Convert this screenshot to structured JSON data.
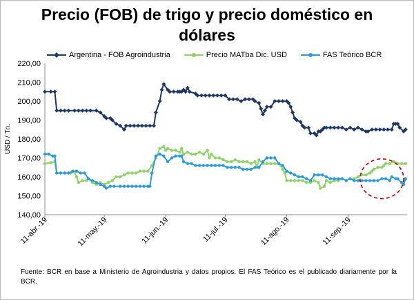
{
  "chart_data": {
    "type": "line",
    "title": "Precio (FOB) de trigo y precio doméstico en dólares",
    "xlabel": "",
    "ylabel": "USD / Tn.",
    "ylim": [
      140,
      220
    ],
    "yticks": [
      "140,00",
      "150,00",
      "160,00",
      "170,00",
      "180,00",
      "190,00",
      "200,00",
      "210,00",
      "220,00"
    ],
    "x_ticks": [
      "11-abr.-19",
      "11-may.-19",
      "11-jun.-19",
      "11-jul.-19",
      "11-ago.-19",
      "11-sep.-19"
    ],
    "x_tick_days": [
      0,
      30,
      61,
      91,
      122,
      153
    ],
    "xlim_days": [
      0,
      181
    ],
    "grid": false,
    "legend_position": "top",
    "series": [
      {
        "name": "Argentina - FOB Agroindustria",
        "color": "#1f3864",
        "marker": "diamond",
        "points": [
          [
            0,
            205
          ],
          [
            3,
            205
          ],
          [
            5,
            205
          ],
          [
            6,
            195
          ],
          [
            8,
            195
          ],
          [
            10,
            195
          ],
          [
            12,
            195
          ],
          [
            15,
            195
          ],
          [
            17,
            195
          ],
          [
            19,
            195
          ],
          [
            21,
            195
          ],
          [
            23,
            195
          ],
          [
            26,
            195
          ],
          [
            28,
            194
          ],
          [
            30,
            192
          ],
          [
            31,
            191
          ],
          [
            33,
            191
          ],
          [
            34,
            190
          ],
          [
            36,
            188
          ],
          [
            38,
            187
          ],
          [
            40,
            185
          ],
          [
            41,
            187
          ],
          [
            43,
            187
          ],
          [
            45,
            187
          ],
          [
            47,
            187
          ],
          [
            49,
            187
          ],
          [
            51,
            187
          ],
          [
            53,
            187
          ],
          [
            55,
            187
          ],
          [
            56,
            194
          ],
          [
            58,
            200
          ],
          [
            59,
            206
          ],
          [
            60,
            209
          ],
          [
            62,
            206
          ],
          [
            63,
            205
          ],
          [
            65,
            205
          ],
          [
            67,
            205
          ],
          [
            68,
            205
          ],
          [
            69,
            205
          ],
          [
            70,
            206
          ],
          [
            71,
            205
          ],
          [
            72,
            207
          ],
          [
            73,
            205
          ],
          [
            76,
            204
          ],
          [
            77,
            203
          ],
          [
            79,
            203
          ],
          [
            81,
            203
          ],
          [
            83,
            203
          ],
          [
            85,
            203
          ],
          [
            87,
            203
          ],
          [
            89,
            203
          ],
          [
            91,
            203
          ],
          [
            93,
            201
          ],
          [
            95,
            201
          ],
          [
            97,
            201
          ],
          [
            99,
            200
          ],
          [
            101,
            201
          ],
          [
            103,
            201
          ],
          [
            105,
            201
          ],
          [
            106,
            200
          ],
          [
            108,
            199
          ],
          [
            109,
            196
          ],
          [
            110,
            193
          ],
          [
            111,
            195
          ],
          [
            112,
            197
          ],
          [
            114,
            197
          ],
          [
            116,
            200
          ],
          [
            118,
            200
          ],
          [
            120,
            200
          ],
          [
            122,
            200
          ],
          [
            123,
            199
          ],
          [
            124,
            197
          ],
          [
            125,
            194
          ],
          [
            126,
            191
          ],
          [
            127,
            190
          ],
          [
            129,
            189
          ],
          [
            130,
            187
          ],
          [
            131,
            186
          ],
          [
            133,
            186
          ],
          [
            134,
            183
          ],
          [
            136,
            183
          ],
          [
            137,
            182
          ],
          [
            138,
            184
          ],
          [
            139,
            184
          ],
          [
            140,
            185
          ],
          [
            141,
            186
          ],
          [
            142,
            186
          ],
          [
            144,
            186
          ],
          [
            146,
            186
          ],
          [
            148,
            186
          ],
          [
            150,
            186
          ],
          [
            152,
            185
          ],
          [
            154,
            186
          ],
          [
            156,
            185
          ],
          [
            158,
            186
          ],
          [
            160,
            185
          ],
          [
            162,
            184
          ],
          [
            163,
            184
          ],
          [
            165,
            185
          ],
          [
            167,
            185
          ],
          [
            169,
            185
          ],
          [
            171,
            185
          ],
          [
            173,
            185
          ],
          [
            175,
            185
          ],
          [
            176,
            188
          ],
          [
            177,
            188
          ],
          [
            178,
            188
          ],
          [
            179,
            186
          ],
          [
            181,
            184
          ],
          [
            182,
            185
          ]
        ]
      },
      {
        "name": "Precio MATba Dic. USD",
        "color": "#8fd16a",
        "marker": "circle",
        "points": [
          [
            0,
            167
          ],
          [
            3,
            167.5
          ],
          [
            5,
            168
          ],
          [
            6,
            162
          ],
          [
            10,
            162
          ],
          [
            13,
            162
          ],
          [
            15,
            162.5
          ],
          [
            16,
            160
          ],
          [
            17,
            157
          ],
          [
            19,
            158
          ],
          [
            21,
            158
          ],
          [
            22,
            159
          ],
          [
            24,
            157
          ],
          [
            26,
            156
          ],
          [
            28,
            157
          ],
          [
            30,
            156
          ],
          [
            32,
            157
          ],
          [
            34,
            158
          ],
          [
            36,
            160
          ],
          [
            38,
            160
          ],
          [
            40,
            161
          ],
          [
            42,
            162
          ],
          [
            44,
            162
          ],
          [
            46,
            162
          ],
          [
            48,
            163
          ],
          [
            50,
            163
          ],
          [
            52,
            163
          ],
          [
            54,
            166
          ],
          [
            56,
            170
          ],
          [
            58,
            175
          ],
          [
            60,
            176
          ],
          [
            61,
            174
          ],
          [
            62,
            175
          ],
          [
            64,
            174
          ],
          [
            66,
            174
          ],
          [
            68,
            173
          ],
          [
            69,
            175
          ],
          [
            70,
            172
          ],
          [
            72,
            173
          ],
          [
            74,
            172
          ],
          [
            76,
            172
          ],
          [
            78,
            173
          ],
          [
            80,
            172
          ],
          [
            82,
            174
          ],
          [
            83,
            170
          ],
          [
            84,
            172
          ],
          [
            86,
            170
          ],
          [
            88,
            170
          ],
          [
            90,
            169
          ],
          [
            92,
            168
          ],
          [
            94,
            168
          ],
          [
            96,
            169
          ],
          [
            98,
            168
          ],
          [
            100,
            168
          ],
          [
            102,
            168
          ],
          [
            104,
            167
          ],
          [
            106,
            168
          ],
          [
            107,
            165
          ],
          [
            108,
            169
          ],
          [
            110,
            167
          ],
          [
            112,
            167
          ],
          [
            114,
            167
          ],
          [
            116,
            167
          ],
          [
            118,
            167
          ],
          [
            119,
            166
          ],
          [
            120,
            164
          ],
          [
            121,
            162
          ],
          [
            122,
            158
          ],
          [
            124,
            158
          ],
          [
            126,
            158
          ],
          [
            128,
            158
          ],
          [
            130,
            158
          ],
          [
            132,
            157
          ],
          [
            134,
            157
          ],
          [
            136,
            158
          ],
          [
            138,
            157
          ],
          [
            139,
            154
          ],
          [
            141,
            155
          ],
          [
            142,
            158
          ],
          [
            144,
            157
          ],
          [
            146,
            158
          ],
          [
            148,
            158
          ],
          [
            150,
            159
          ],
          [
            152,
            158
          ],
          [
            154,
            159
          ],
          [
            156,
            159
          ],
          [
            158,
            160
          ],
          [
            160,
            161
          ],
          [
            162,
            161
          ],
          [
            164,
            162
          ],
          [
            165,
            163
          ],
          [
            166,
            164
          ],
          [
            168,
            165
          ],
          [
            170,
            165
          ],
          [
            171,
            166
          ],
          [
            172,
            167
          ],
          [
            174,
            167
          ],
          [
            176,
            168
          ],
          [
            178,
            167
          ],
          [
            180,
            167
          ],
          [
            182,
            167
          ]
        ]
      },
      {
        "name": "FAS Teórico BCR",
        "color": "#2e9bd6",
        "marker": "circle",
        "points": [
          [
            0,
            172
          ],
          [
            2,
            172
          ],
          [
            4,
            171
          ],
          [
            5,
            171
          ],
          [
            6,
            162
          ],
          [
            8,
            162
          ],
          [
            10,
            162
          ],
          [
            12,
            162
          ],
          [
            14,
            163
          ],
          [
            16,
            163
          ],
          [
            18,
            162
          ],
          [
            20,
            162
          ],
          [
            22,
            159
          ],
          [
            24,
            158
          ],
          [
            26,
            157
          ],
          [
            28,
            156
          ],
          [
            30,
            155
          ],
          [
            31,
            154
          ],
          [
            33,
            155
          ],
          [
            35,
            155
          ],
          [
            38,
            155
          ],
          [
            40,
            155
          ],
          [
            42,
            155
          ],
          [
            44,
            155
          ],
          [
            46,
            155
          ],
          [
            48,
            155
          ],
          [
            50,
            155
          ],
          [
            52,
            155
          ],
          [
            53,
            155
          ],
          [
            54,
            162
          ],
          [
            56,
            171
          ],
          [
            58,
            172
          ],
          [
            60,
            171
          ],
          [
            62,
            168
          ],
          [
            64,
            170
          ],
          [
            66,
            171
          ],
          [
            68,
            171
          ],
          [
            69,
            171
          ],
          [
            70,
            168
          ],
          [
            72,
            167
          ],
          [
            74,
            167
          ],
          [
            76,
            166
          ],
          [
            78,
            166
          ],
          [
            80,
            166
          ],
          [
            82,
            166
          ],
          [
            84,
            166
          ],
          [
            86,
            166
          ],
          [
            88,
            166
          ],
          [
            90,
            166
          ],
          [
            92,
            165
          ],
          [
            94,
            165
          ],
          [
            96,
            165
          ],
          [
            98,
            165
          ],
          [
            100,
            164
          ],
          [
            102,
            164
          ],
          [
            104,
            164
          ],
          [
            106,
            165
          ],
          [
            108,
            165
          ],
          [
            110,
            168
          ],
          [
            112,
            170
          ],
          [
            114,
            170
          ],
          [
            116,
            170
          ],
          [
            118,
            167
          ],
          [
            120,
            166
          ],
          [
            122,
            163
          ],
          [
            124,
            162
          ],
          [
            126,
            161
          ],
          [
            128,
            160
          ],
          [
            130,
            160
          ],
          [
            132,
            159
          ],
          [
            134,
            158
          ],
          [
            136,
            161
          ],
          [
            138,
            161
          ],
          [
            140,
            161
          ],
          [
            142,
            160
          ],
          [
            144,
            159
          ],
          [
            146,
            159
          ],
          [
            148,
            159
          ],
          [
            150,
            159
          ],
          [
            152,
            158
          ],
          [
            154,
            159
          ],
          [
            156,
            158
          ],
          [
            158,
            158
          ],
          [
            160,
            158
          ],
          [
            162,
            158
          ],
          [
            164,
            158
          ],
          [
            166,
            158
          ],
          [
            168,
            158
          ],
          [
            170,
            159
          ],
          [
            172,
            159
          ],
          [
            174,
            158
          ],
          [
            175,
            160
          ],
          [
            177,
            159
          ],
          [
            178,
            159
          ],
          [
            180,
            157
          ],
          [
            181,
            156
          ],
          [
            182,
            159
          ]
        ]
      }
    ],
    "annotation": {
      "type": "dashed-circle",
      "color": "#c00000",
      "cx_day": 170,
      "cy_value": 159,
      "rx_days": 11,
      "ry_value": 10.5
    }
  },
  "source_note": "Fuente: BCR en base a Ministerio de Agroindustria y datos propios. El FAS Teórico es el publicado diariamente por la BCR."
}
